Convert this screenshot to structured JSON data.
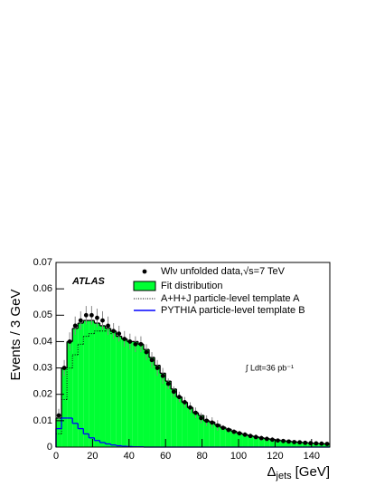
{
  "chart_data": {
    "type": "histogram",
    "experiment": "ATLAS",
    "annotation": "∫ Ldt=36 pb⁻¹",
    "ylabel": "Events / 3 GeV",
    "xlabel": {
      "symbol": "Δ",
      "subscript": "jets",
      "unit": "[GeV]"
    },
    "xlim": [
      0,
      150
    ],
    "ylim": [
      0,
      0.07
    ],
    "xticks": [
      0,
      20,
      40,
      60,
      80,
      100,
      120,
      140
    ],
    "yticks": [
      0,
      0.01,
      0.02,
      0.03,
      0.04,
      0.05,
      0.06,
      0.07
    ],
    "bins": [
      0,
      3,
      6,
      9,
      12,
      15,
      18,
      21,
      24,
      27,
      30,
      33,
      36,
      39,
      42,
      45,
      48,
      51,
      54,
      57,
      60,
      63,
      66,
      69,
      72,
      75,
      78,
      81,
      84,
      87,
      90,
      93,
      96,
      99,
      102,
      105,
      108,
      111,
      114,
      117,
      120,
      123,
      126,
      129,
      132,
      135,
      138,
      141,
      144,
      147,
      150
    ],
    "series": [
      {
        "name": "Wlν unfolded data,√s=7 TeV",
        "style": "points",
        "color": "#000000",
        "values": [
          0.012,
          0.03,
          0.04,
          0.046,
          0.048,
          0.05,
          0.05,
          0.049,
          0.048,
          0.046,
          0.044,
          0.043,
          0.041,
          0.04,
          0.039,
          0.039,
          0.036,
          0.033,
          0.03,
          0.027,
          0.024,
          0.021,
          0.019,
          0.017,
          0.015,
          0.013,
          0.011,
          0.01,
          0.0093,
          0.0082,
          0.0073,
          0.0065,
          0.0058,
          0.0052,
          0.0047,
          0.0042,
          0.0038,
          0.0034,
          0.0031,
          0.0028,
          0.0025,
          0.0023,
          0.0021,
          0.0019,
          0.0018,
          0.0016,
          0.0015,
          0.0014,
          0.0013,
          0.0012
        ],
        "errors": [
          0.0025,
          0.003,
          0.0035,
          0.0035,
          0.0035,
          0.0035,
          0.0035,
          0.0035,
          0.0035,
          0.0035,
          0.003,
          0.003,
          0.003,
          0.003,
          0.003,
          0.003,
          0.003,
          0.003,
          0.003,
          0.003,
          0.002,
          0.002,
          0.002,
          0.002,
          0.002,
          0.002,
          0.002,
          0.002,
          0.002,
          0.002,
          0.001,
          0.001,
          0.001,
          0.001,
          0.001,
          0.001,
          0.001,
          0.001,
          0.001,
          0.001,
          0.0007,
          0.0007,
          0.0007,
          0.0007,
          0.0007,
          0.0007,
          0.0007,
          0.0007,
          0.0007,
          0.0007
        ]
      },
      {
        "name": "Fit distribution",
        "style": "fill",
        "color": "#00ff33",
        "values": [
          0.011,
          0.03,
          0.04,
          0.045,
          0.047,
          0.048,
          0.048,
          0.047,
          0.046,
          0.045,
          0.044,
          0.042,
          0.041,
          0.04,
          0.04,
          0.039,
          0.037,
          0.034,
          0.031,
          0.028,
          0.025,
          0.022,
          0.019,
          0.017,
          0.015,
          0.013,
          0.012,
          0.01,
          0.0095,
          0.0085,
          0.0075,
          0.0068,
          0.006,
          0.0053,
          0.0048,
          0.0043,
          0.0039,
          0.0035,
          0.0032,
          0.0029,
          0.0026,
          0.0024,
          0.0022,
          0.002,
          0.0018,
          0.0017,
          0.0015,
          0.0014,
          0.0013,
          0.0012
        ]
      },
      {
        "name": "A+H+J particle-level template A",
        "style": "dotted",
        "color": "#000000",
        "values": [
          0.005,
          0.018,
          0.03,
          0.035,
          0.039,
          0.042,
          0.043,
          0.044,
          0.044,
          0.044,
          0.043,
          0.042,
          0.041,
          0.04,
          0.04,
          0.039,
          0.037,
          0.034,
          0.031,
          0.028,
          0.025,
          0.022,
          0.019,
          0.017,
          0.015,
          0.013,
          0.012,
          0.01,
          0.0095,
          0.0085,
          0.0075,
          0.0068,
          0.006,
          0.0053,
          0.0048,
          0.0043,
          0.0039,
          0.0035,
          0.0032,
          0.0029,
          0.0026,
          0.0024,
          0.0022,
          0.002,
          0.0018,
          0.0017,
          0.0015,
          0.0014,
          0.0013,
          0.0012
        ]
      },
      {
        "name": "PYTHIA particle-level template B",
        "style": "line",
        "color": "#0000ff",
        "values": [
          0.007,
          0.011,
          0.011,
          0.009,
          0.007,
          0.005,
          0.0035,
          0.0025,
          0.0017,
          0.0012,
          0.0008,
          0.0005,
          0.0003,
          0.0002,
          0.0001,
          0.0001,
          0,
          0,
          0,
          0,
          0,
          0,
          0,
          0,
          0,
          0,
          0,
          0,
          0,
          0,
          0,
          0,
          0,
          0,
          0,
          0,
          0,
          0,
          0,
          0,
          0,
          0,
          0,
          0,
          0,
          0,
          0,
          0,
          0,
          0
        ]
      }
    ]
  }
}
